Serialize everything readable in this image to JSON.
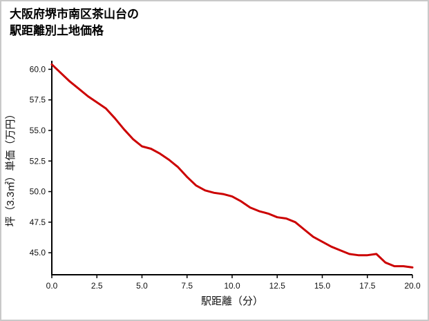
{
  "chart_data": {
    "type": "line",
    "title": "大阪府堺市南区茶山台の駅距離別土地価格",
    "title_line1": "大阪府堺市南区茶山台の",
    "title_line2": "駅距離別土地価格",
    "xlabel": "駅距離（分）",
    "ylabel": "坪（3.3㎡）単価（万円）",
    "x": [
      0,
      0.5,
      1,
      1.5,
      2,
      2.5,
      3,
      3.5,
      4,
      4.5,
      5,
      5.5,
      6,
      6.5,
      7,
      7.5,
      8,
      8.5,
      9,
      9.5,
      10,
      10.5,
      11,
      11.5,
      12,
      12.5,
      13,
      13.5,
      14,
      14.5,
      15,
      15.5,
      16,
      16.5,
      17,
      17.5,
      18,
      18.5,
      19,
      19.5,
      20
    ],
    "y": [
      60.4,
      59.7,
      59.0,
      58.4,
      57.8,
      57.3,
      56.8,
      56.0,
      55.1,
      54.3,
      53.7,
      53.5,
      53.1,
      52.6,
      52.0,
      51.2,
      50.5,
      50.1,
      49.9,
      49.8,
      49.6,
      49.2,
      48.7,
      48.4,
      48.2,
      47.9,
      47.8,
      47.5,
      46.9,
      46.3,
      45.9,
      45.5,
      45.2,
      44.9,
      44.8,
      44.8,
      44.9,
      44.2,
      43.9,
      43.9,
      43.8
    ],
    "xticks": [
      "0.0",
      "2.5",
      "5.0",
      "7.5",
      "10.0",
      "12.5",
      "15.0",
      "17.5",
      "20.0"
    ],
    "yticks": [
      "45.0",
      "47.5",
      "50.0",
      "52.5",
      "55.0",
      "57.5",
      "60.0"
    ],
    "xlim": [
      0,
      20
    ],
    "ylim": [
      43.2,
      60.7
    ],
    "line_color": "#cc0000",
    "axis_color": "#000000",
    "tick_label_color": "#111111",
    "grid": false,
    "legend": "none"
  }
}
